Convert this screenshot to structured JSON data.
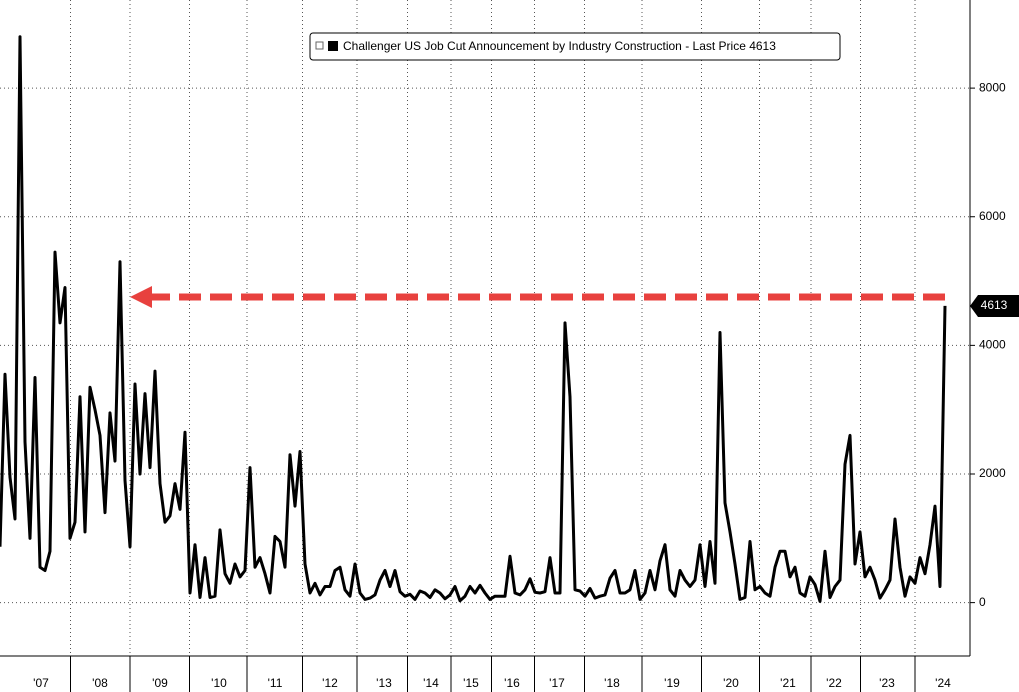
{
  "chart_data": {
    "type": "line",
    "series": [
      {
        "name": "Challenger US Job Cut Announcement by Industry Construction - Last Price 4613",
        "color": "#000000",
        "x": [
          0,
          5,
          10,
          15,
          20,
          25,
          30,
          35,
          40,
          45,
          50,
          55,
          60,
          65,
          70,
          75,
          80,
          85,
          90,
          95,
          100,
          105,
          110,
          115,
          120,
          125,
          130,
          135,
          140,
          145,
          150,
          155,
          160,
          165,
          170,
          175,
          180,
          185,
          190,
          195,
          200,
          205,
          210,
          215,
          220,
          225,
          230,
          235,
          240,
          245,
          250,
          255,
          260,
          265,
          270,
          275,
          280,
          285,
          290,
          295,
          300,
          305,
          310,
          315,
          320,
          325,
          330,
          335,
          340,
          345,
          350,
          355,
          360,
          365,
          370,
          375,
          380,
          385,
          390,
          395,
          400,
          405,
          410,
          415,
          420,
          425,
          430,
          435,
          440,
          445,
          450,
          455,
          460,
          465,
          470,
          475,
          480,
          485,
          490,
          495,
          500,
          505,
          510,
          515,
          520,
          525,
          530,
          535,
          540,
          545,
          550,
          555,
          560,
          565,
          570,
          575,
          580,
          585,
          590,
          595,
          600,
          605,
          610,
          615,
          620,
          625,
          630,
          635,
          640,
          645,
          650,
          655,
          660,
          665,
          670,
          675,
          680,
          685,
          690,
          695,
          700,
          705,
          710,
          715,
          720,
          725,
          730,
          735,
          740,
          745,
          750,
          755,
          760,
          765,
          770,
          775,
          780,
          785,
          790,
          795,
          800,
          805,
          810,
          815,
          820,
          825,
          830,
          835,
          840,
          845,
          850,
          855,
          860,
          865,
          870,
          875,
          880,
          885,
          890,
          895,
          900,
          905,
          910,
          915,
          920,
          925,
          930,
          935,
          940,
          945
        ],
        "values": [
          870,
          3550,
          1950,
          1300,
          8800,
          2500,
          1000,
          3500,
          550,
          500,
          800,
          5450,
          4350,
          4900,
          1000,
          1250,
          3200,
          1100,
          3350,
          3000,
          2600,
          1400,
          2950,
          2200,
          5300,
          1900,
          870,
          3400,
          2000,
          3250,
          2100,
          3600,
          1850,
          1250,
          1350,
          1850,
          1450,
          2650,
          150,
          900,
          80,
          700,
          80,
          100,
          1130,
          450,
          300,
          600,
          400,
          500,
          2100,
          550,
          700,
          450,
          150,
          1030,
          950,
          550,
          2300,
          1500,
          2350,
          600,
          150,
          300,
          120,
          250,
          250,
          500,
          550,
          200,
          100,
          600,
          150,
          50,
          70,
          120,
          350,
          500,
          250,
          500,
          170,
          100,
          130,
          50,
          180,
          150,
          80,
          200,
          150,
          60,
          120,
          250,
          30,
          100,
          250,
          150,
          270,
          150,
          50,
          100,
          100,
          100,
          720,
          150,
          120,
          200,
          370,
          160,
          150,
          170,
          700,
          150,
          150,
          4350,
          3200,
          200,
          180,
          100,
          220,
          70,
          100,
          120,
          380,
          500,
          150,
          150,
          200,
          500,
          50,
          150,
          500,
          200,
          650,
          900,
          200,
          100,
          500,
          350,
          250,
          350,
          900,
          250,
          950,
          300,
          4200,
          1550,
          1100,
          600,
          50,
          80,
          950,
          200,
          250,
          150,
          100,
          550,
          800,
          800,
          400,
          550,
          150,
          100,
          400,
          280,
          20,
          800,
          80,
          250,
          350,
          2150,
          2600,
          600,
          1100,
          400,
          550,
          350,
          70,
          200,
          350,
          1300,
          550,
          100,
          400,
          300,
          700,
          450,
          900,
          1500,
          250,
          4613
        ]
      }
    ],
    "xlim": [
      0,
      970
    ],
    "xticks": [
      {
        "value": 41,
        "label": "'07"
      },
      {
        "value": 100,
        "label": "'08"
      },
      {
        "value": 160,
        "label": "'09"
      },
      {
        "value": 219,
        "label": "'10"
      },
      {
        "value": 275,
        "label": "'11"
      },
      {
        "value": 330,
        "label": "'12"
      },
      {
        "value": 384,
        "label": "'13"
      },
      {
        "value": 431,
        "label": "'14"
      },
      {
        "value": 471,
        "label": "'15"
      },
      {
        "value": 512,
        "label": "'16"
      },
      {
        "value": 557,
        "label": "'17"
      },
      {
        "value": 612,
        "label": "'18"
      },
      {
        "value": 672,
        "label": "'19"
      },
      {
        "value": 731,
        "label": "'20"
      },
      {
        "value": 788,
        "label": "'21"
      },
      {
        "value": 834,
        "label": "'22"
      },
      {
        "value": 887,
        "label": "'23"
      },
      {
        "value": 943,
        "label": "'24"
      }
    ],
    "ylim": [
      -830,
      9370
    ],
    "yticks": [
      0,
      2000,
      4000,
      6000,
      8000
    ],
    "grid": true,
    "legend": "top"
  }
}
